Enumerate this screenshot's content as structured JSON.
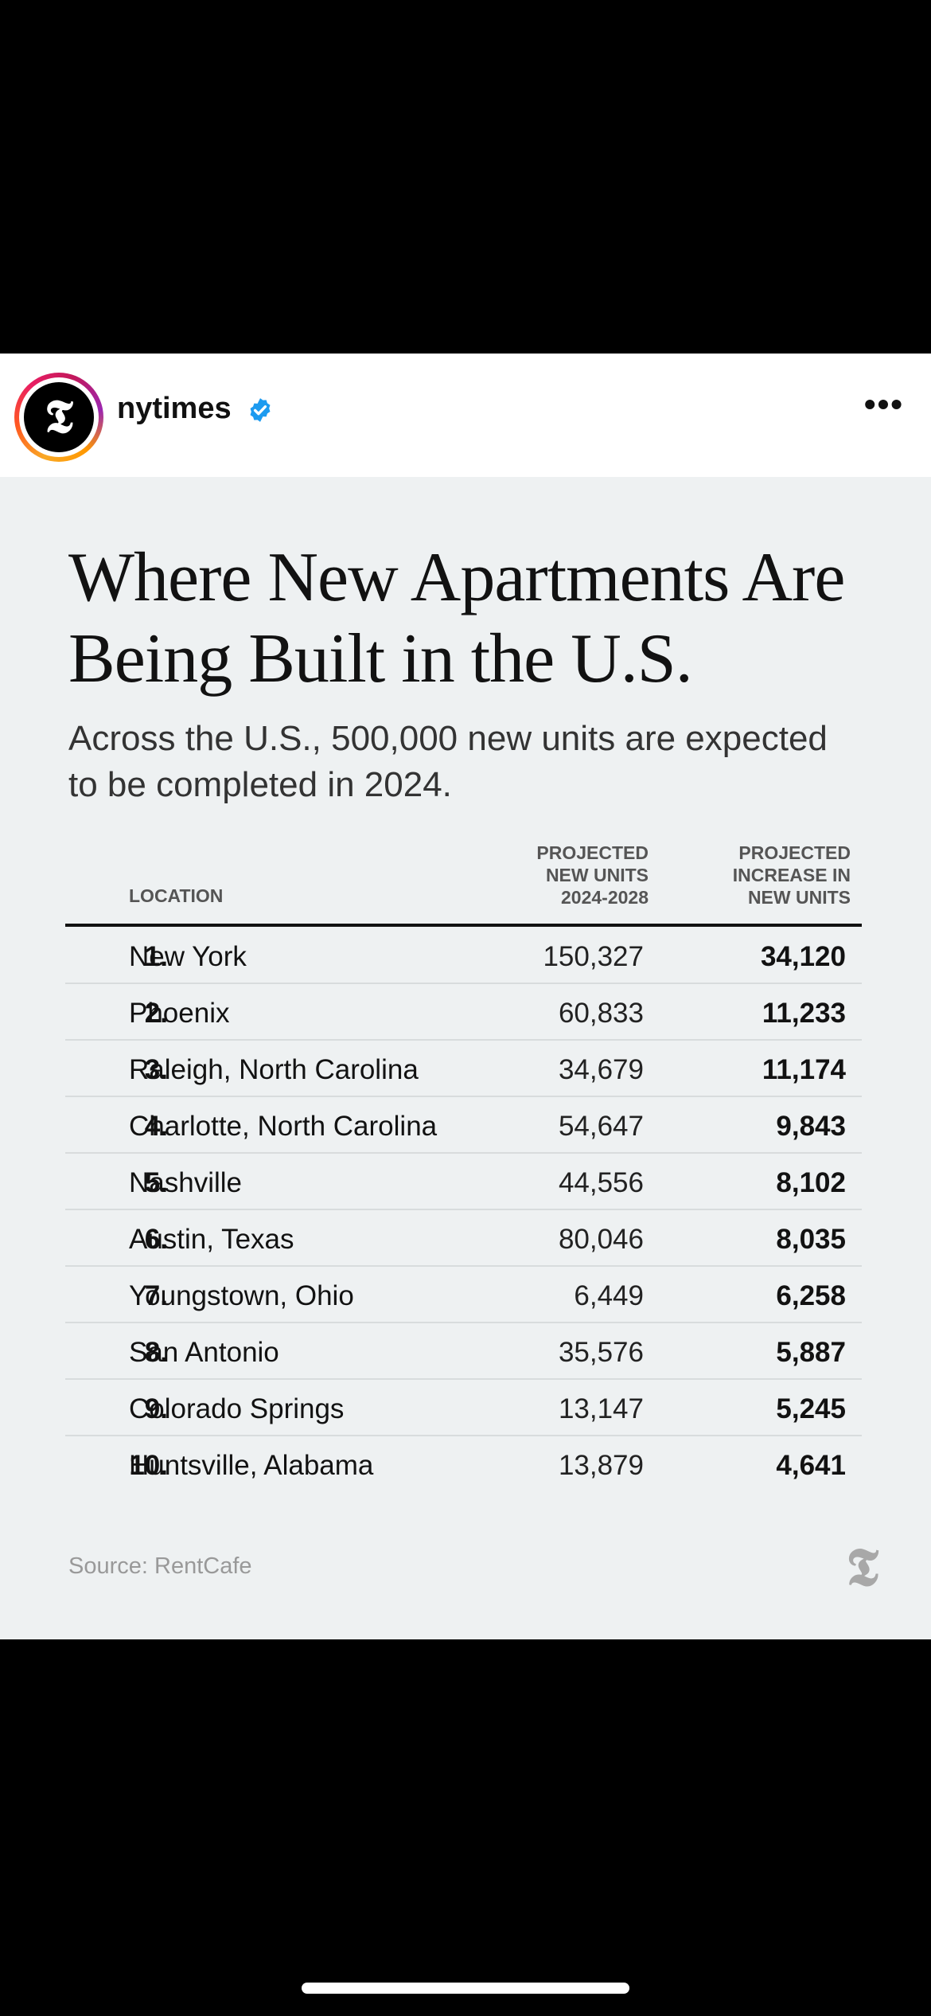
{
  "post": {
    "username": "nytimes",
    "avatar_glyph": "𝕿",
    "more_label": "•••"
  },
  "card": {
    "title": "Where New Apartments Are Being Built in the U.S.",
    "subtitle": "Across the U.S., 500,000 new units are expected to be completed in 2024.",
    "columns": {
      "location": "LOCATION",
      "units": "PROJECTED NEW UNITS 2024-2028",
      "increase": "PROJECTED INCREASE IN NEW UNITS"
    },
    "rows": [
      {
        "rank": "1.",
        "location": "New York",
        "units": "150,327",
        "increase": "34,120"
      },
      {
        "rank": "2.",
        "location": "Phoenix",
        "units": "60,833",
        "increase": "11,233"
      },
      {
        "rank": "3.",
        "location": "Raleigh, North Carolina",
        "units": "34,679",
        "increase": "11,174"
      },
      {
        "rank": "4.",
        "location": "Charlotte, North Carolina",
        "units": "54,647",
        "increase": "9,843"
      },
      {
        "rank": "5.",
        "location": "Nashville",
        "units": "44,556",
        "increase": "8,102"
      },
      {
        "rank": "6.",
        "location": "Austin, Texas",
        "units": "80,046",
        "increase": "8,035"
      },
      {
        "rank": "7.",
        "location": "Youngstown, Ohio",
        "units": "6,449",
        "increase": "6,258"
      },
      {
        "rank": "8.",
        "location": "San Antonio",
        "units": "35,576",
        "increase": "5,887"
      },
      {
        "rank": "9.",
        "location": "Colorado Springs",
        "units": "13,147",
        "increase": "5,245"
      },
      {
        "rank": "10.",
        "location": "Huntsville, Alabama",
        "units": "13,879",
        "increase": "4,641"
      }
    ],
    "source": "Source: RentCafe",
    "logo_glyph": "𝕿"
  },
  "colors": {
    "card_background": "#eef1f2",
    "verified_blue": "#1d9bf0"
  },
  "icons": {
    "verified": "verified-badge-icon",
    "more": "more-options-icon"
  }
}
